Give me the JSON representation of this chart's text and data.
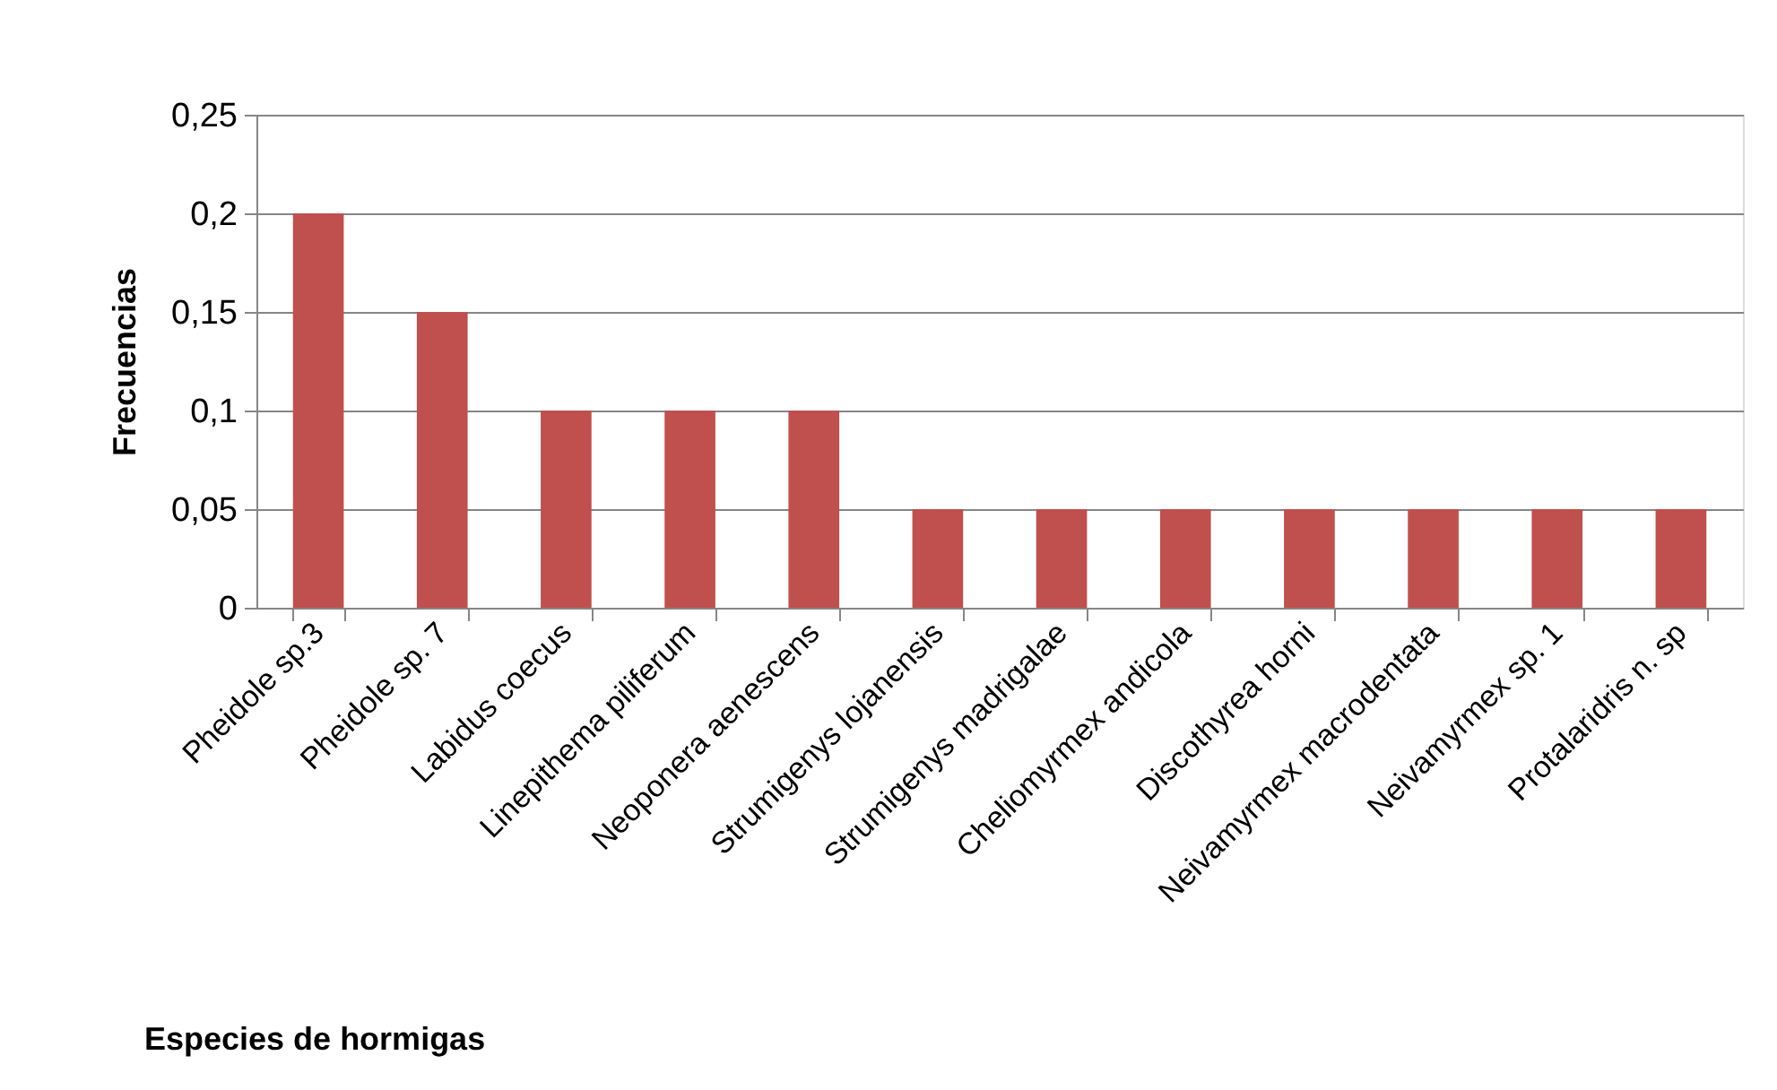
{
  "chart_data": {
    "type": "bar",
    "categories": [
      "Pheidole sp.3",
      "Pheidole sp. 7",
      "Labidus coecus",
      "Linepithema piliferum",
      "Neoponera aenescens",
      "Strumigenys lojanensis",
      "Strumigenys madrigalae",
      "Cheliomyrmex andicola",
      "Discothyrea horni",
      "Neivamyrmex macrodentata",
      "Neivamyrmex sp. 1",
      "Protalaridris n. sp"
    ],
    "values": [
      0.2,
      0.15,
      0.1,
      0.1,
      0.1,
      0.05,
      0.05,
      0.05,
      0.05,
      0.05,
      0.05,
      0.05
    ],
    "color": "#c0504d",
    "xlabel": "Especies de hormigas",
    "ylabel": "Frecuencias",
    "ylim": [
      0,
      0.25
    ],
    "yticks": [
      0,
      {
        "value": 0.05,
        "label": "0,05"
      },
      {
        "value": 0.1,
        "label": "0,1"
      },
      {
        "value": 0.15,
        "label": "0,15"
      },
      {
        "value": 0.2,
        "label": "0,2"
      },
      {
        "value": 0.25,
        "label": "0,25"
      }
    ],
    "grid": "y"
  }
}
